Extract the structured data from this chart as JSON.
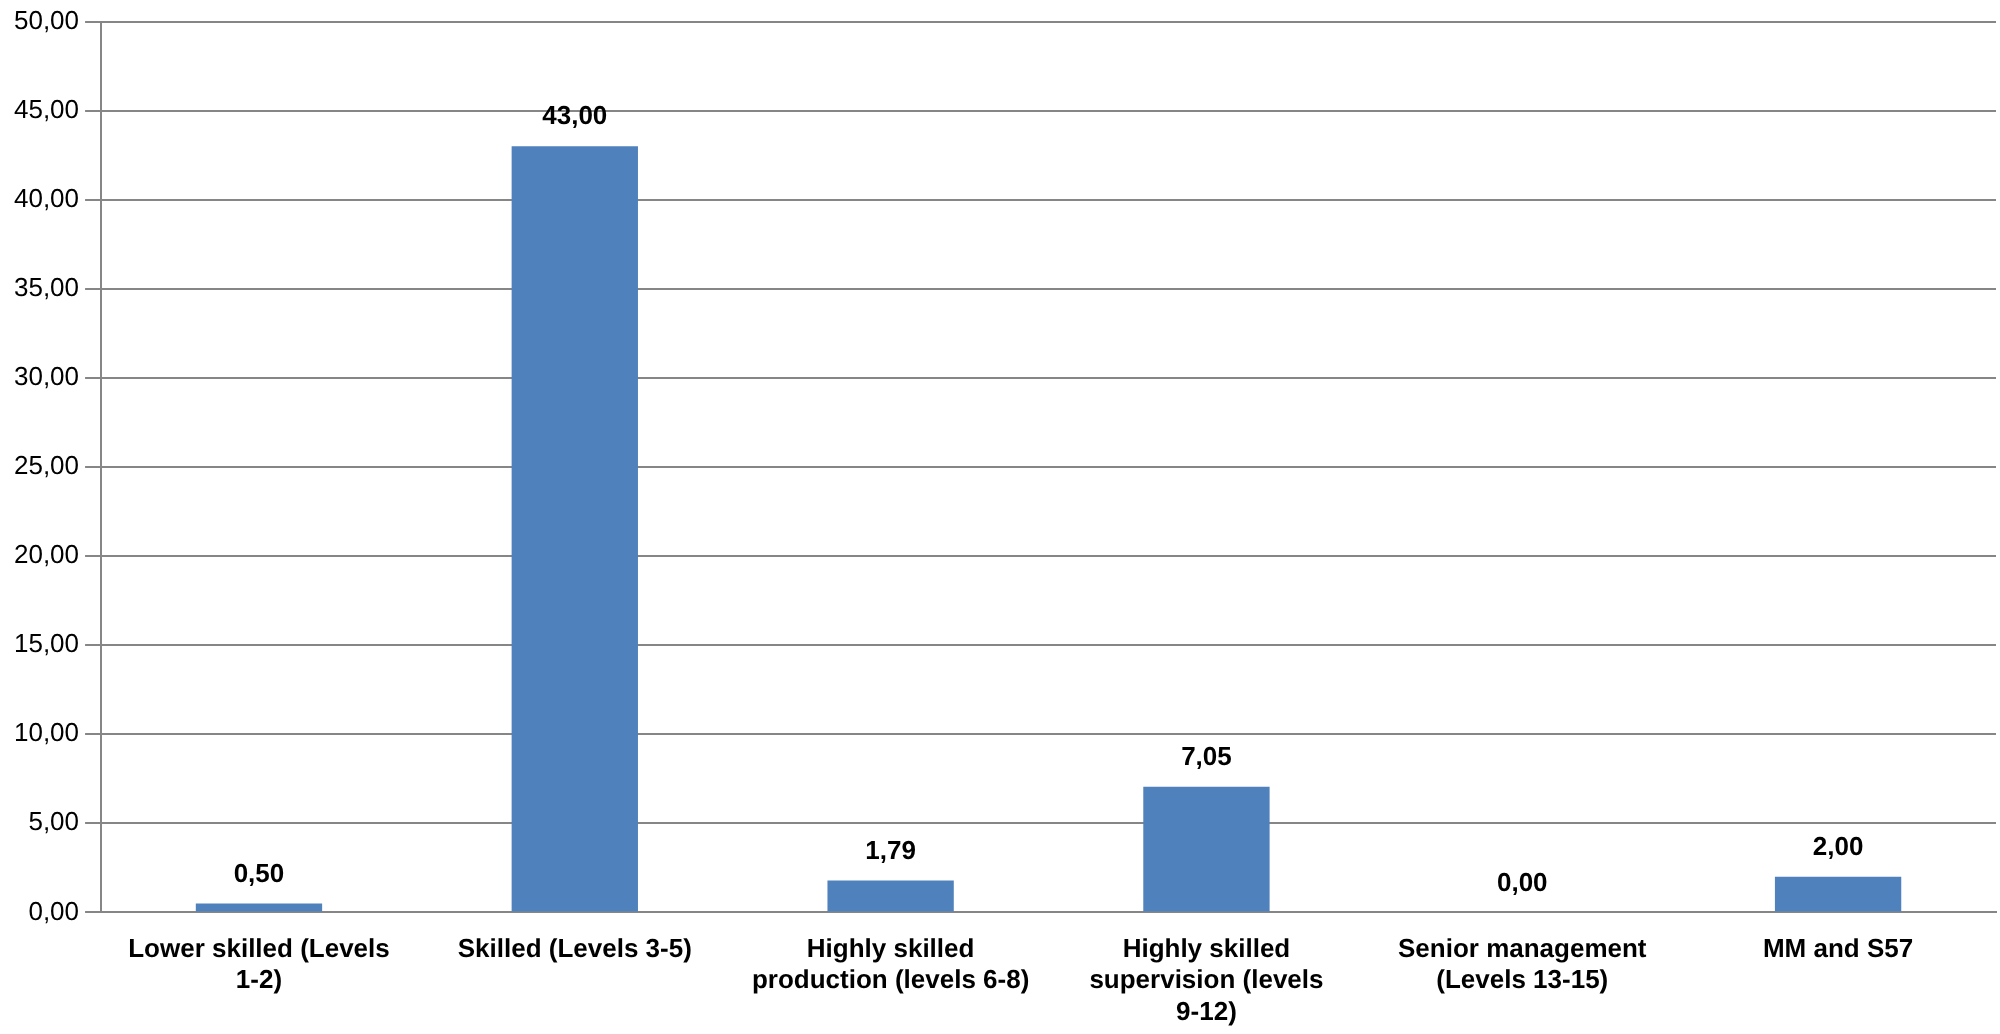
{
  "chart_data": {
    "type": "bar",
    "categories": [
      "Lower skilled (Levels 1-2)",
      "Skilled (Levels 3-5)",
      "Highly skilled production (levels 6-8)",
      "Highly skilled supervision (levels 9-12)",
      "Senior management (Levels 13-15)",
      "MM and S57"
    ],
    "values": [
      0.5,
      43,
      1.79,
      7.05,
      0,
      2
    ],
    "value_labels": [
      "0,50",
      "43,00",
      "1,79",
      "7,05",
      "0,00",
      "2,00"
    ],
    "color": "#4f81bd",
    "ylim": [
      0,
      50
    ],
    "yticks": [
      {
        "value": 0,
        "label": "0,00"
      },
      {
        "value": 5,
        "label": "5,00"
      },
      {
        "value": 10,
        "label": "10,00"
      },
      {
        "value": 15,
        "label": "15,00"
      },
      {
        "value": 20,
        "label": "20,00"
      },
      {
        "value": 25,
        "label": "25,00"
      },
      {
        "value": 30,
        "label": "30,00"
      },
      {
        "value": 35,
        "label": "35,00"
      },
      {
        "value": 40,
        "label": "40,00"
      },
      {
        "value": 45,
        "label": "45,00"
      },
      {
        "value": 50,
        "label": "50,00"
      }
    ],
    "grid": "y"
  }
}
